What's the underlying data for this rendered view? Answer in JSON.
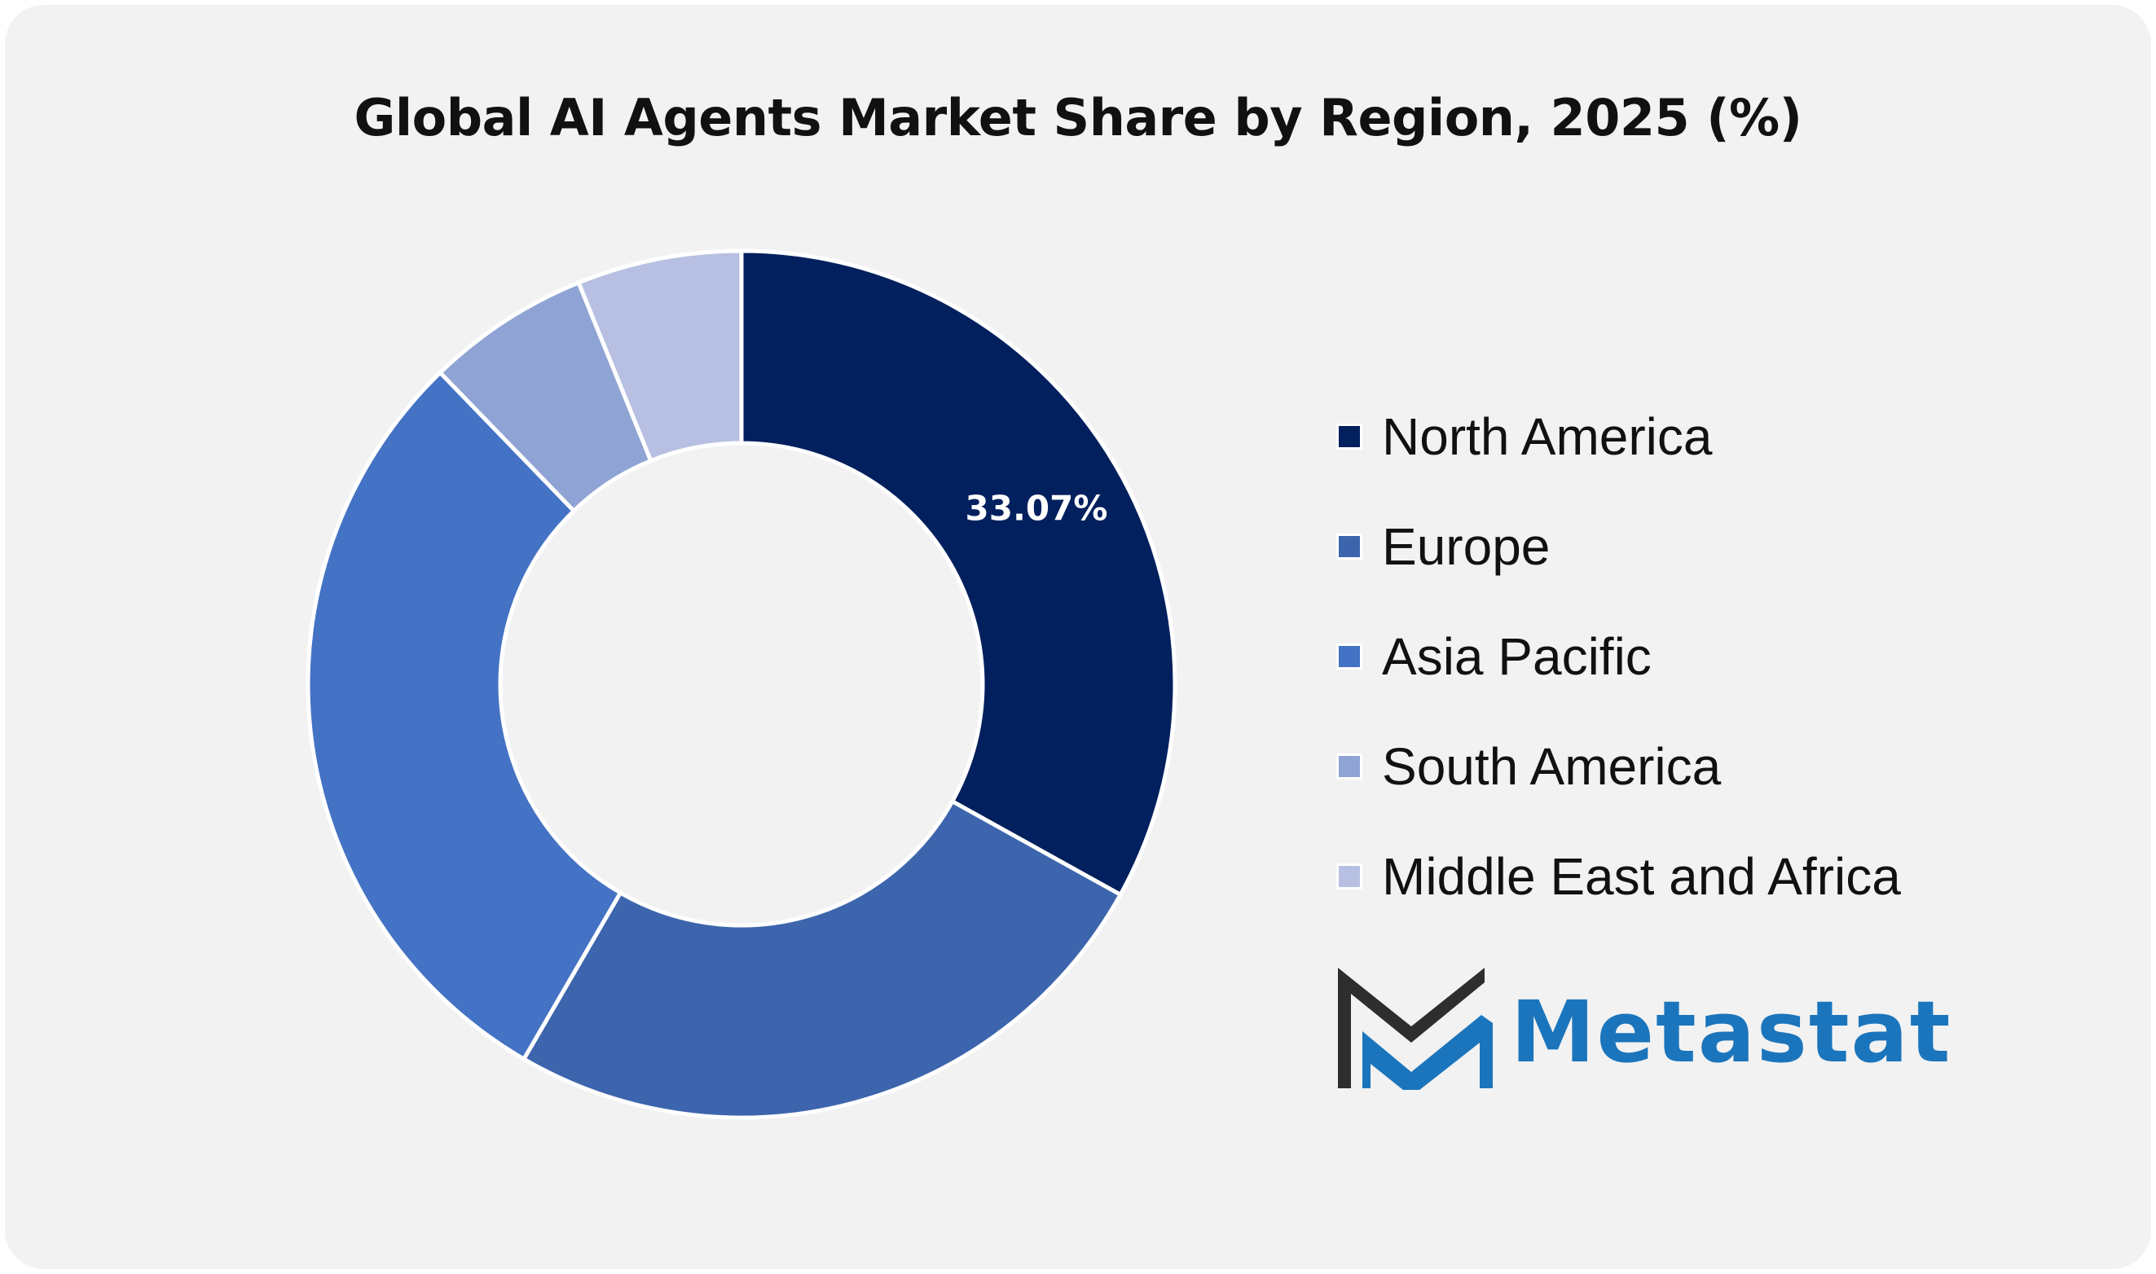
{
  "title": "Global AI Agents Market Share by Region, 2025 (%)",
  "chart_data": {
    "type": "pie",
    "donut": true,
    "title": "Global AI Agents Market Share by Region, 2025 (%)",
    "categories": [
      "North America",
      "Europe",
      "Asia Pacific",
      "South America",
      "Middle East and Africa"
    ],
    "values": [
      33.07,
      25.3,
      29.4,
      6.1,
      6.13
    ],
    "colors": [
      "#02205e",
      "#3d65ad",
      "#4472c4",
      "#8fa4d4",
      "#b7c0e2"
    ],
    "data_labels": [
      "33.07%",
      "",
      "",
      "",
      ""
    ],
    "legend_position": "right",
    "start_angle": "top",
    "direction": "clockwise"
  },
  "legend": {
    "items": [
      {
        "label": "North America",
        "color": "#02205e"
      },
      {
        "label": "Europe",
        "color": "#3d65ad"
      },
      {
        "label": "Asia Pacific",
        "color": "#4472c4"
      },
      {
        "label": "South America",
        "color": "#8fa4d4"
      },
      {
        "label": "Middle East and Africa",
        "color": "#b7c0e2"
      }
    ]
  },
  "brand": {
    "name": "Metastat",
    "logo_icon": "metastat-m-logo-icon",
    "colors": {
      "dark": "#2e2e2e",
      "accent": "#1b75bc"
    }
  }
}
